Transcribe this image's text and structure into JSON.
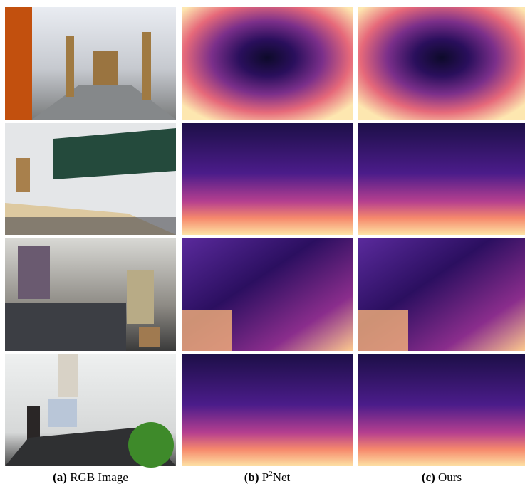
{
  "figure": {
    "captions": [
      {
        "label": "(a)",
        "text": "RGB Image"
      },
      {
        "label": "(b)",
        "text": "P",
        "sup": "2",
        "text_after": "Net"
      },
      {
        "label": "(c)",
        "text": "Ours"
      }
    ]
  }
}
